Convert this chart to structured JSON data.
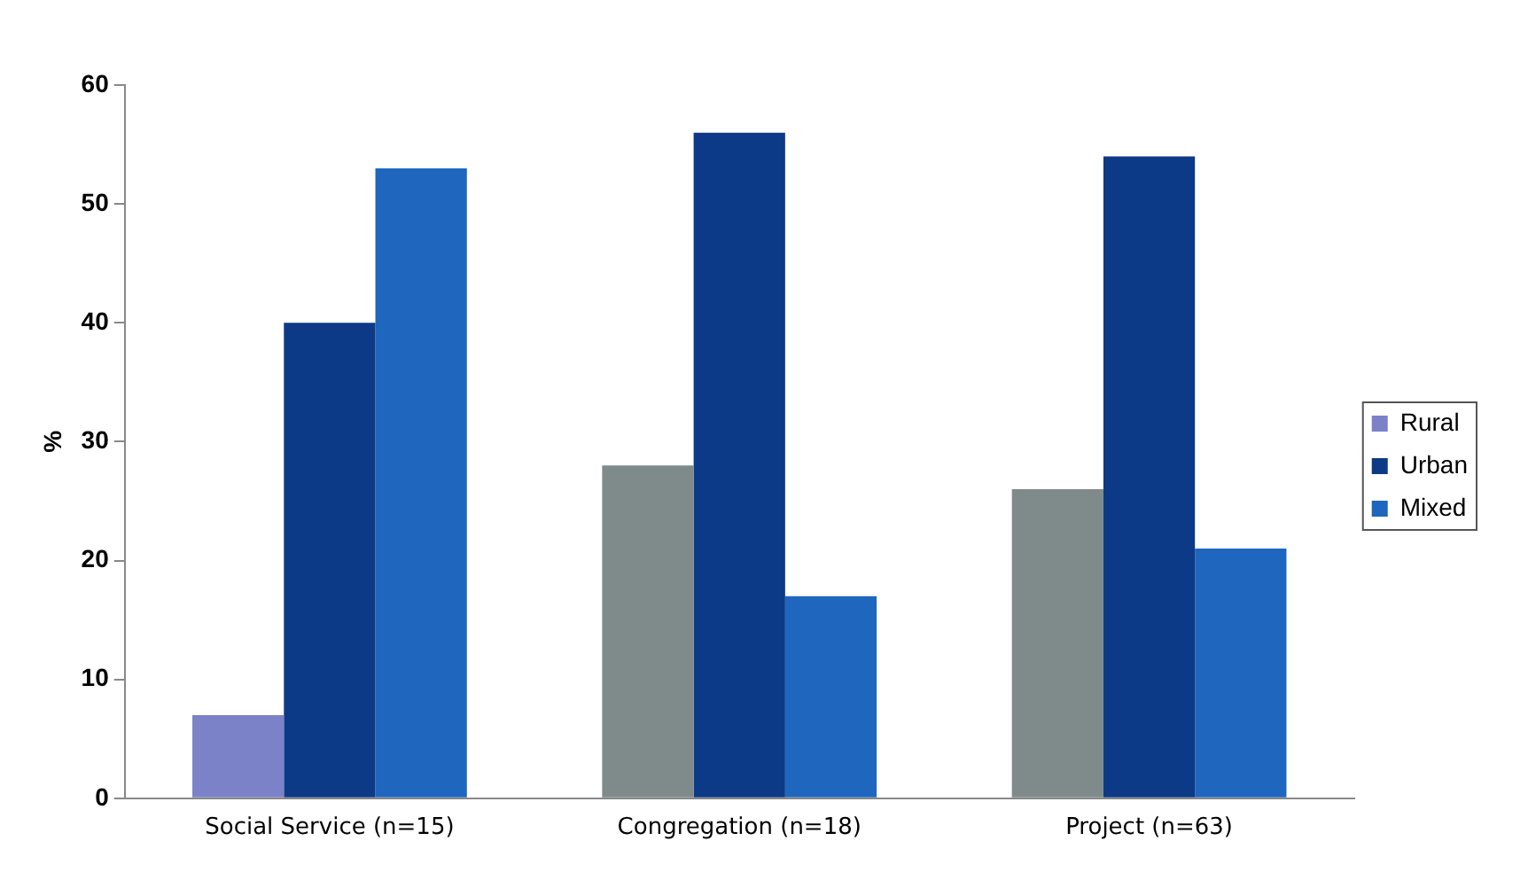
{
  "chart_data": {
    "type": "bar",
    "ylabel": "%",
    "categories": [
      "Social Service (n=15)",
      "Congregation (n=18)",
      "Project (n=63)"
    ],
    "series": [
      {
        "name": "Rural",
        "color": "#7f8a8a",
        "colors": [
          "#7b82c8",
          "#7f8a8a",
          "#7f8a8a"
        ],
        "values": [
          7,
          28,
          26
        ]
      },
      {
        "name": "Urban",
        "color": "#0d3a86",
        "values": [
          40,
          56,
          54
        ]
      },
      {
        "name": "Mixed",
        "color": "#1f66bf",
        "values": [
          53,
          17,
          21
        ]
      }
    ],
    "ylim": [
      0,
      60
    ],
    "yticks": [
      0,
      10,
      20,
      30,
      40,
      50,
      60
    ],
    "grid": false,
    "legend": "right"
  }
}
